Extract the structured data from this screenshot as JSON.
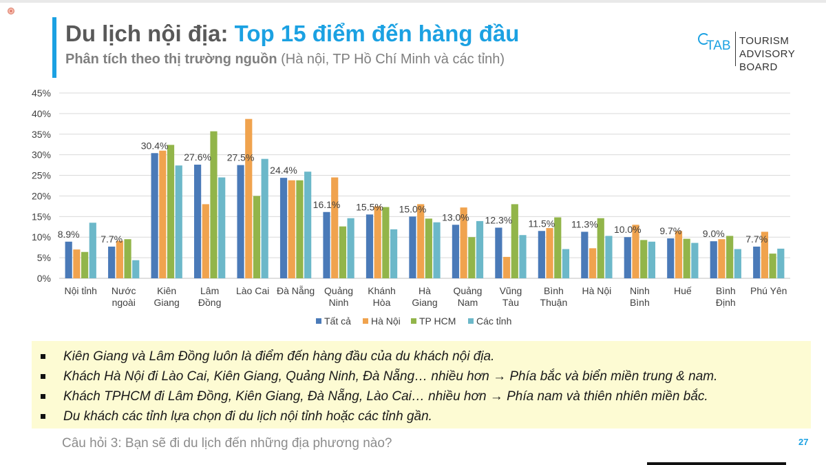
{
  "header": {
    "title_part1": "Du lịch nội địa: ",
    "title_part2": "Top 15 điểm đến hàng đầu",
    "subtitle_bold": "Phân tích theo thị trường nguồn",
    "subtitle_rest": " (Hà nội, TP Hồ Chí Minh và các tỉnh)"
  },
  "logo": {
    "tab": "TAB",
    "line1": "TOURISM",
    "line2": "ADVISORY BOARD"
  },
  "colors": {
    "accent": "#1ba1e2",
    "series": [
      "#4a7ab8",
      "#f0a34e",
      "#92b54a",
      "#6cb8c9"
    ]
  },
  "chart_data": {
    "type": "bar",
    "categories": [
      [
        "Nội tỉnh"
      ],
      [
        "Nước",
        "ngoài"
      ],
      [
        "Kiên",
        "Giang"
      ],
      [
        "Lâm",
        "Đồng"
      ],
      [
        "Lào Cai"
      ],
      [
        "Đà Nẵng"
      ],
      [
        "Quảng",
        "Ninh"
      ],
      [
        "Khánh",
        "Hòa"
      ],
      [
        "Hà",
        "Giang"
      ],
      [
        "Quảng",
        "Nam"
      ],
      [
        "Vũng",
        "Tàu"
      ],
      [
        "Bình",
        "Thuận"
      ],
      [
        "Hà Nội"
      ],
      [
        "Ninh",
        "Bình"
      ],
      [
        "Huế"
      ],
      [
        "Bình",
        "Định"
      ],
      [
        "Phú Yên"
      ]
    ],
    "series": [
      {
        "name": "Tất cả",
        "values": [
          8.9,
          7.7,
          30.4,
          27.6,
          27.5,
          24.4,
          16.1,
          15.5,
          15.0,
          13.0,
          12.3,
          11.5,
          11.3,
          10.0,
          9.7,
          9.0,
          7.7
        ]
      },
      {
        "name": "Hà Nội",
        "values": [
          7.0,
          9.1,
          31.0,
          18.0,
          38.7,
          23.8,
          24.5,
          17.5,
          18.0,
          17.2,
          5.2,
          12.2,
          7.3,
          13.0,
          11.5,
          9.5,
          11.3
        ]
      },
      {
        "name": "TP HCM",
        "values": [
          6.4,
          9.5,
          32.4,
          35.7,
          20.0,
          23.8,
          12.6,
          17.3,
          14.5,
          10.0,
          18.0,
          14.8,
          14.6,
          9.3,
          9.6,
          10.3,
          6.0
        ]
      },
      {
        "name": "Các tỉnh",
        "values": [
          13.5,
          4.4,
          27.4,
          24.5,
          29.0,
          25.9,
          14.6,
          11.9,
          13.6,
          13.9,
          10.5,
          7.1,
          10.3,
          8.9,
          8.6,
          7.1,
          7.2
        ]
      }
    ],
    "data_labels": [
      "8.9%",
      "7.7%",
      "30.4%",
      "27.6%",
      "27.5%",
      "24.4%",
      "16.1%",
      "15.5%",
      "15.0%",
      "13.0%",
      "12.3%",
      "11.5%",
      "11.3%",
      "10.0%",
      "9.7%",
      "9.0%",
      "7.7%"
    ],
    "y_ticks": [
      "0%",
      "5%",
      "10%",
      "15%",
      "20%",
      "25%",
      "30%",
      "35%",
      "40%",
      "45%"
    ],
    "ylim": [
      0,
      45
    ],
    "grid": true,
    "legend_position": "bottom"
  },
  "notes": [
    "Kiên Giang và Lâm Đồng luôn là điểm đến hàng đầu của du khách nội địa.",
    "Khách Hà Nội đi Lào Cai, Kiên Giang, Quảng Ninh, Đà Nẵng… nhiều hơn → Phía bắc và biển miền trung & nam.",
    "Khách TPHCM đi Lâm Đồng, Kiên Giang, Đà Nẵng, Lào Cai… nhiều hơn → Phía nam và thiên nhiên miền bắc.",
    "Du khách các tỉnh lựa chọn đi du lịch nội tỉnh hoặc các tỉnh gần."
  ],
  "footer": {
    "question": "Câu hỏi 3: Bạn sẽ đi du lịch đến những địa phương nào?",
    "page_number": "27"
  }
}
